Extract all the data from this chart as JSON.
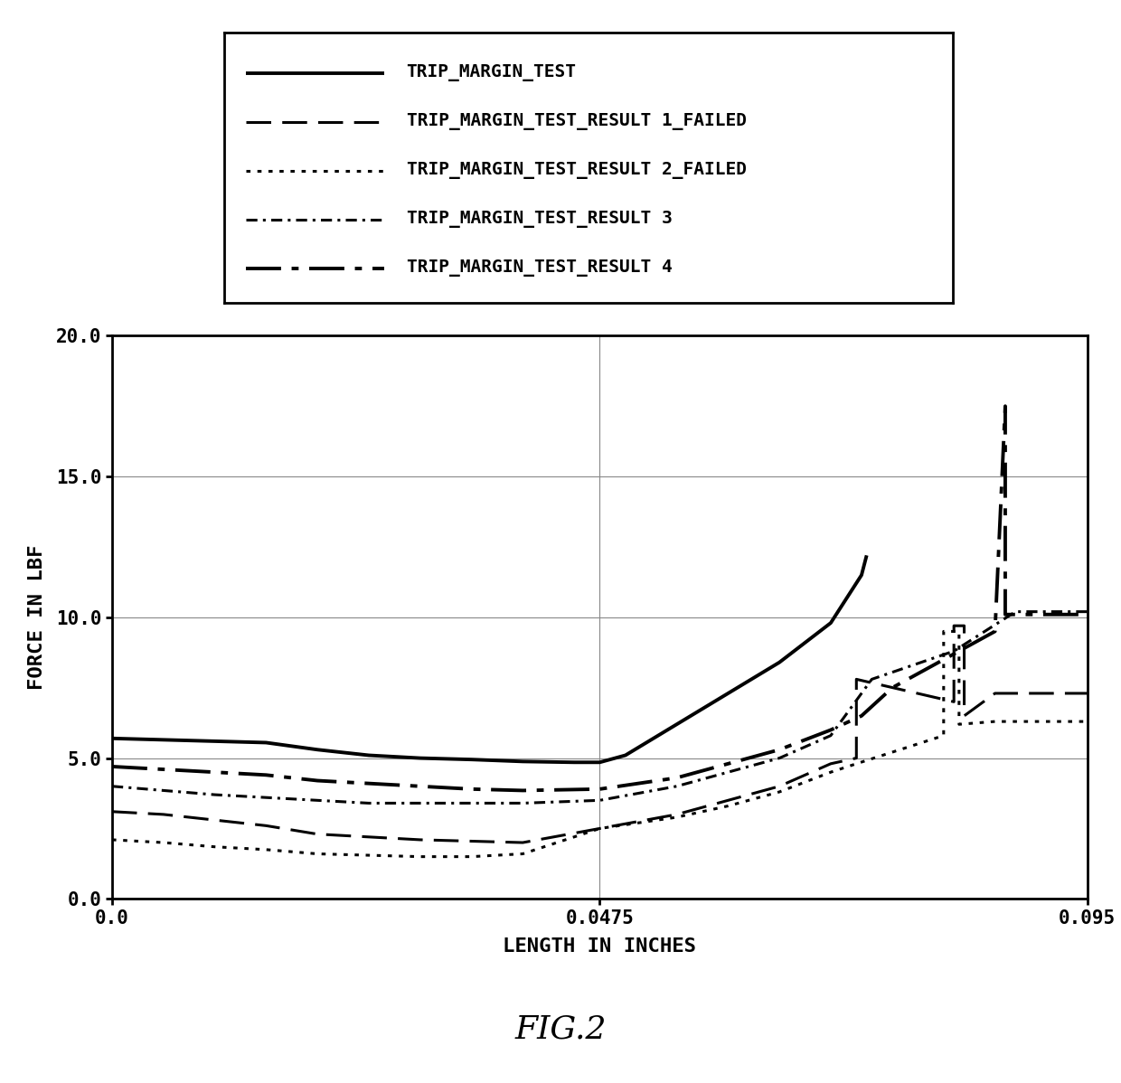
{
  "title": "FIG.2",
  "xlabel": "LENGTH IN INCHES",
  "ylabel": "FORCE IN LBF",
  "xlim": [
    0.0,
    0.095
  ],
  "ylim": [
    0.0,
    20.0
  ],
  "xticks": [
    0.0,
    0.0475,
    0.095
  ],
  "yticks": [
    0.0,
    5.0,
    10.0,
    15.0,
    20.0
  ],
  "background_color": "#ffffff",
  "legend_labels": [
    "TRIP_MARGIN_TEST",
    "TRIP_MARGIN_TEST_RESULT 1_FAILED",
    "TRIP_MARGIN_TEST_RESULT 2_FAILED",
    "TRIP_MARGIN_TEST_RESULT 3",
    "TRIP_MARGIN_TEST_RESULT 4"
  ],
  "tmt_x": [
    0.0,
    0.005,
    0.01,
    0.015,
    0.02,
    0.025,
    0.03,
    0.035,
    0.04,
    0.045,
    0.0475,
    0.05,
    0.055,
    0.06,
    0.065,
    0.07,
    0.073,
    0.0735
  ],
  "tmt_y": [
    5.7,
    5.65,
    5.6,
    5.55,
    5.3,
    5.1,
    5.0,
    4.95,
    4.88,
    4.85,
    4.85,
    5.1,
    6.2,
    7.3,
    8.4,
    9.8,
    11.5,
    12.2
  ],
  "r1_x": [
    0.0,
    0.005,
    0.01,
    0.015,
    0.02,
    0.025,
    0.03,
    0.035,
    0.04,
    0.0475,
    0.055,
    0.06,
    0.065,
    0.07,
    0.0725,
    0.0725,
    0.082,
    0.082,
    0.083,
    0.083,
    0.086,
    0.086,
    0.095
  ],
  "r1_y": [
    3.1,
    3.0,
    2.8,
    2.6,
    2.3,
    2.2,
    2.1,
    2.05,
    2.0,
    2.5,
    3.0,
    3.5,
    4.0,
    4.8,
    5.0,
    7.8,
    7.0,
    9.7,
    9.7,
    6.5,
    7.3,
    7.3,
    7.3
  ],
  "r2_x": [
    0.0,
    0.005,
    0.01,
    0.015,
    0.02,
    0.025,
    0.03,
    0.035,
    0.04,
    0.0475,
    0.055,
    0.06,
    0.065,
    0.07,
    0.0725,
    0.0725,
    0.081,
    0.081,
    0.0825,
    0.0825,
    0.086,
    0.086,
    0.095
  ],
  "r2_y": [
    2.1,
    2.0,
    1.85,
    1.75,
    1.6,
    1.55,
    1.5,
    1.5,
    1.6,
    2.5,
    2.9,
    3.3,
    3.8,
    4.5,
    4.8,
    4.8,
    5.8,
    9.5,
    9.5,
    6.2,
    6.3,
    6.3,
    6.3
  ],
  "r3_x": [
    0.0,
    0.005,
    0.01,
    0.015,
    0.02,
    0.025,
    0.03,
    0.035,
    0.04,
    0.0475,
    0.055,
    0.06,
    0.065,
    0.07,
    0.074,
    0.074,
    0.082,
    0.085,
    0.088,
    0.095
  ],
  "r3_y": [
    4.0,
    3.85,
    3.7,
    3.6,
    3.5,
    3.4,
    3.4,
    3.4,
    3.4,
    3.5,
    4.0,
    4.5,
    5.0,
    5.8,
    7.8,
    7.8,
    8.8,
    9.5,
    10.2,
    10.2
  ],
  "r4_x": [
    0.0,
    0.005,
    0.01,
    0.015,
    0.02,
    0.025,
    0.03,
    0.035,
    0.04,
    0.0475,
    0.055,
    0.06,
    0.065,
    0.07,
    0.073,
    0.073,
    0.076,
    0.086,
    0.087,
    0.087,
    0.095
  ],
  "r4_y": [
    4.7,
    4.6,
    4.5,
    4.4,
    4.2,
    4.1,
    4.0,
    3.9,
    3.85,
    3.9,
    4.3,
    4.8,
    5.3,
    6.0,
    6.5,
    6.5,
    7.5,
    9.5,
    17.5,
    10.1,
    10.1
  ]
}
